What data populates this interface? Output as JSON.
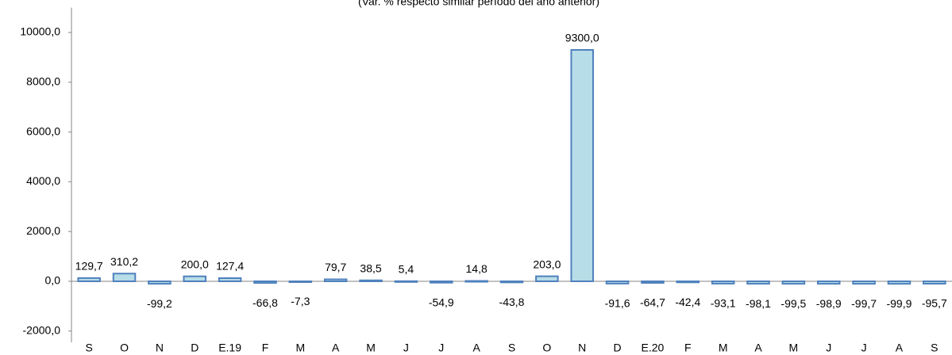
{
  "chart_data": {
    "type": "bar",
    "subtitle": "(Var. % respecto similar período del año anterior)",
    "categories": [
      "S",
      "O",
      "N",
      "D",
      "E.19",
      "F",
      "M",
      "A",
      "M",
      "J",
      "J",
      "A",
      "S",
      "O",
      "N",
      "D",
      "E.20",
      "F",
      "M",
      "A",
      "M",
      "J",
      "J",
      "A",
      "S"
    ],
    "values": [
      129.7,
      310.2,
      -99.2,
      200.0,
      127.4,
      -66.8,
      -7.3,
      79.7,
      38.5,
      5.4,
      -54.9,
      14.8,
      -43.8,
      203.0,
      9300.0,
      -91.6,
      -64.7,
      -42.4,
      -93.1,
      -98.1,
      -99.5,
      -98.9,
      -99.7,
      -99.9,
      -95.7
    ],
    "value_labels": [
      "129,7",
      "310,2",
      "-99,2",
      "200,0",
      "127,4",
      "-66,8",
      "-7,3",
      "79,7",
      "38,5",
      "5,4",
      "-54,9",
      "14,8",
      "-43,8",
      "203,0",
      "9300,0",
      "-91,6",
      "-64,7",
      "-42,4",
      "-93,1",
      "-98,1",
      "-99,5",
      "-98,9",
      "-99,7",
      "-99,9",
      "-95,7"
    ],
    "color": "#b7dde8",
    "edge_color": "#4f81bd",
    "ylim": [
      -2000,
      11000
    ],
    "yticks": [
      {
        "value": -2000,
        "label": "-2000,0"
      },
      {
        "value": 0,
        "label": "0,0"
      },
      {
        "value": 2000,
        "label": "2000,0"
      },
      {
        "value": 4000,
        "label": "4000,0"
      },
      {
        "value": 6000,
        "label": "6000,0"
      },
      {
        "value": 8000,
        "label": "8000,0"
      },
      {
        "value": 10000,
        "label": "10000,0"
      }
    ],
    "grid": false
  }
}
